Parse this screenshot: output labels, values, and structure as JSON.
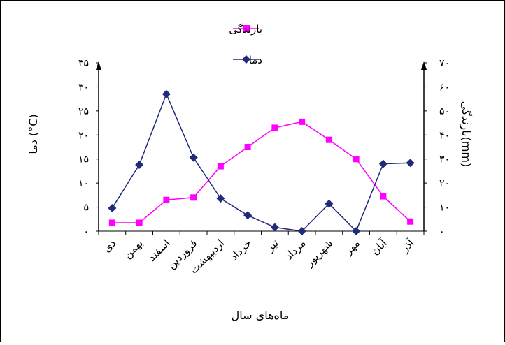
{
  "chart_data": {
    "type": "line",
    "xlabel": "ماه‌های سال",
    "ylabel_left": "دما (°C)",
    "ylabel_right": "بارندگی(mm)",
    "categories": [
      "دی",
      "بهمن",
      "اسفند",
      "فروردین",
      "اردیبهشت",
      "خرداد",
      "تیر",
      "مرداد",
      "شهریور",
      "مهر",
      "آبان",
      "آذر"
    ],
    "y_left": {
      "ticks": [
        "۰",
        "۵",
        "۱۰",
        "۱۵",
        "۲۰",
        "۲۵",
        "۳۰",
        "۳۵"
      ],
      "ylim": [
        0,
        35
      ]
    },
    "y_right": {
      "ticks": [
        "۰",
        "۱۰",
        "۲۰",
        "۳۰",
        "۴۰",
        "۵۰",
        "۶۰",
        "۷۰"
      ],
      "ylim": [
        0,
        70
      ]
    },
    "series": [
      {
        "name": "بارندگی",
        "axis": "right",
        "color": "#ff00ff",
        "marker": "square",
        "values": [
          3.5,
          3.5,
          13.0,
          14.0,
          27.0,
          35.0,
          43.0,
          45.5,
          38.0,
          30.0,
          14.5,
          4.0
        ]
      },
      {
        "name": "دما",
        "axis": "left",
        "color": "#1f2a7a",
        "marker": "diamond",
        "values": [
          4.8,
          13.8,
          28.5,
          15.3,
          6.8,
          3.3,
          0.8,
          0.0,
          5.7,
          0.0,
          14.0,
          14.2
        ]
      }
    ],
    "legend": {
      "position": "top-center",
      "entries": [
        "بارندگی",
        "دما"
      ]
    },
    "grid": false
  }
}
